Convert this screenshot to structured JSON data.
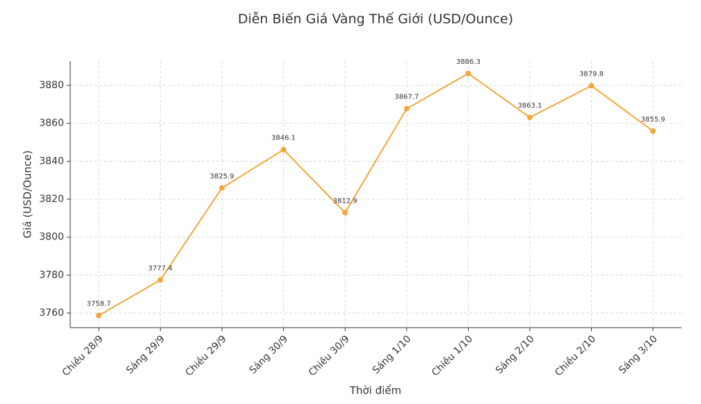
{
  "chart_data": {
    "type": "line",
    "title": "Diễn Biến Giá Vàng Thế Giới (USD/Ounce)",
    "x_label": "Thời điểm",
    "y_label": "Giá (USD/Ounce)",
    "categories": [
      "Chiều 28/9",
      "Sáng 29/9",
      "Chiều 29/9",
      "Sáng 30/9",
      "Chiều 30/9",
      "Sáng 1/10",
      "Chiều 1/10",
      "Sáng 2/10",
      "Chiều 2/10",
      "Sáng 3/10"
    ],
    "values": [
      3758.7,
      3777.4,
      3825.9,
      3846.1,
      3812.9,
      3867.7,
      3886.3,
      3863.1,
      3879.8,
      3855.9
    ],
    "color": "#f0a83a",
    "ylim": [
      3752.3,
      3892.8
    ],
    "yticks": [
      3760,
      3780,
      3800,
      3820,
      3840,
      3860,
      3880
    ],
    "grid": true
  }
}
